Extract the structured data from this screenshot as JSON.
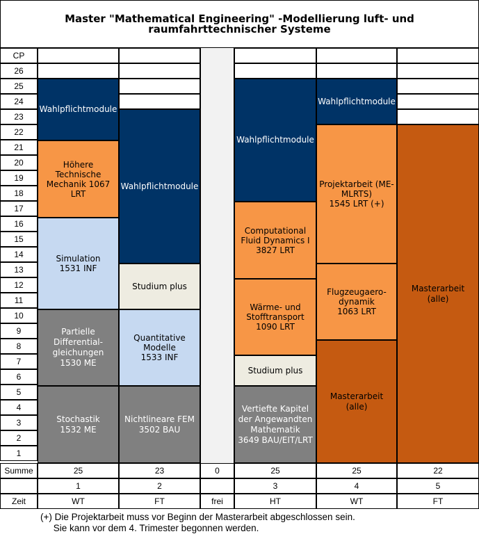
{
  "title": "Master \"Mathematical Engineering\" -Modellierung luft- und raumfahrttechnischer Systeme",
  "rows": {
    "cp_label": "CP",
    "numbers": [
      "26",
      "25",
      "24",
      "23",
      "22",
      "21",
      "20",
      "19",
      "18",
      "17",
      "16",
      "15",
      "14",
      "13",
      "12",
      "11",
      "10",
      "9",
      "8",
      "7",
      "6",
      "5",
      "4",
      "3",
      "2",
      "1"
    ],
    "summe_label": "Summe",
    "zeit_label": "Zeit"
  },
  "columns": [
    {
      "summe": "25",
      "num": "1",
      "zeit": "WT"
    },
    {
      "summe": "23",
      "num": "2",
      "zeit": "FT"
    },
    {
      "summe": "0",
      "num": "",
      "zeit": "frei"
    },
    {
      "summe": "25",
      "num": "3",
      "zeit": "HT"
    },
    {
      "summe": "25",
      "num": "4",
      "zeit": "WT"
    },
    {
      "summe": "22",
      "num": "5",
      "zeit": "FT"
    }
  ],
  "modules": {
    "c1_wahl": "Wahlpflichtmodule",
    "c1_mech": "Höhere Technische\nMechanik 1067\nLRT",
    "c1_sim": "Simulation\n1531 INF",
    "c1_pde": "Partielle\nDifferential-\ngleichungen\n1530 ME",
    "c1_stoch": "Stochastik\n1532 ME",
    "c2_wahl": "Wahlpflichtmodule",
    "c2_studium": "Studium plus",
    "c2_quant": "Quantitative\nModelle\n1533 INF",
    "c2_fem": "Nichtlineare FEM\n3502 BAU",
    "c3_wahl": "Wahlpflichtmodule",
    "c3_cfd": "Computational\nFluid Dynamics I\n3827 LRT",
    "c3_waerme": "Wärme- und\nStofftransport\n1090 LRT",
    "c3_studium": "Studium plus",
    "c3_vert": "Vertiefte Kapitel\nder Angewandten\nMathematik\n3649 BAU/EIT/LRT",
    "c4_wahl": "Wahlpflichtmodule",
    "c4_projekt": "Projektarbeit (ME-\nMLRTS)\n1545 LRT (+)",
    "c4_flug": "Flugzeugaero-\ndynamik\n1063 LRT",
    "c4_master": "Masterarbeit (alle)",
    "c5_master": "Masterarbeit (alle)"
  },
  "footnote": {
    "line1": "(+) Die Projektarbeit muss vor Beginn der Masterarbeit abgeschlossen sein.",
    "line2": "     Sie kann vor dem 4. Trimester begonnen werden."
  },
  "colors": {
    "dark_blue": "#003366",
    "light_orange": "#f79646",
    "dark_orange": "#c55a11",
    "light_blue": "#c6d9f1",
    "cream": "#eeece1",
    "gray": "#808080"
  }
}
